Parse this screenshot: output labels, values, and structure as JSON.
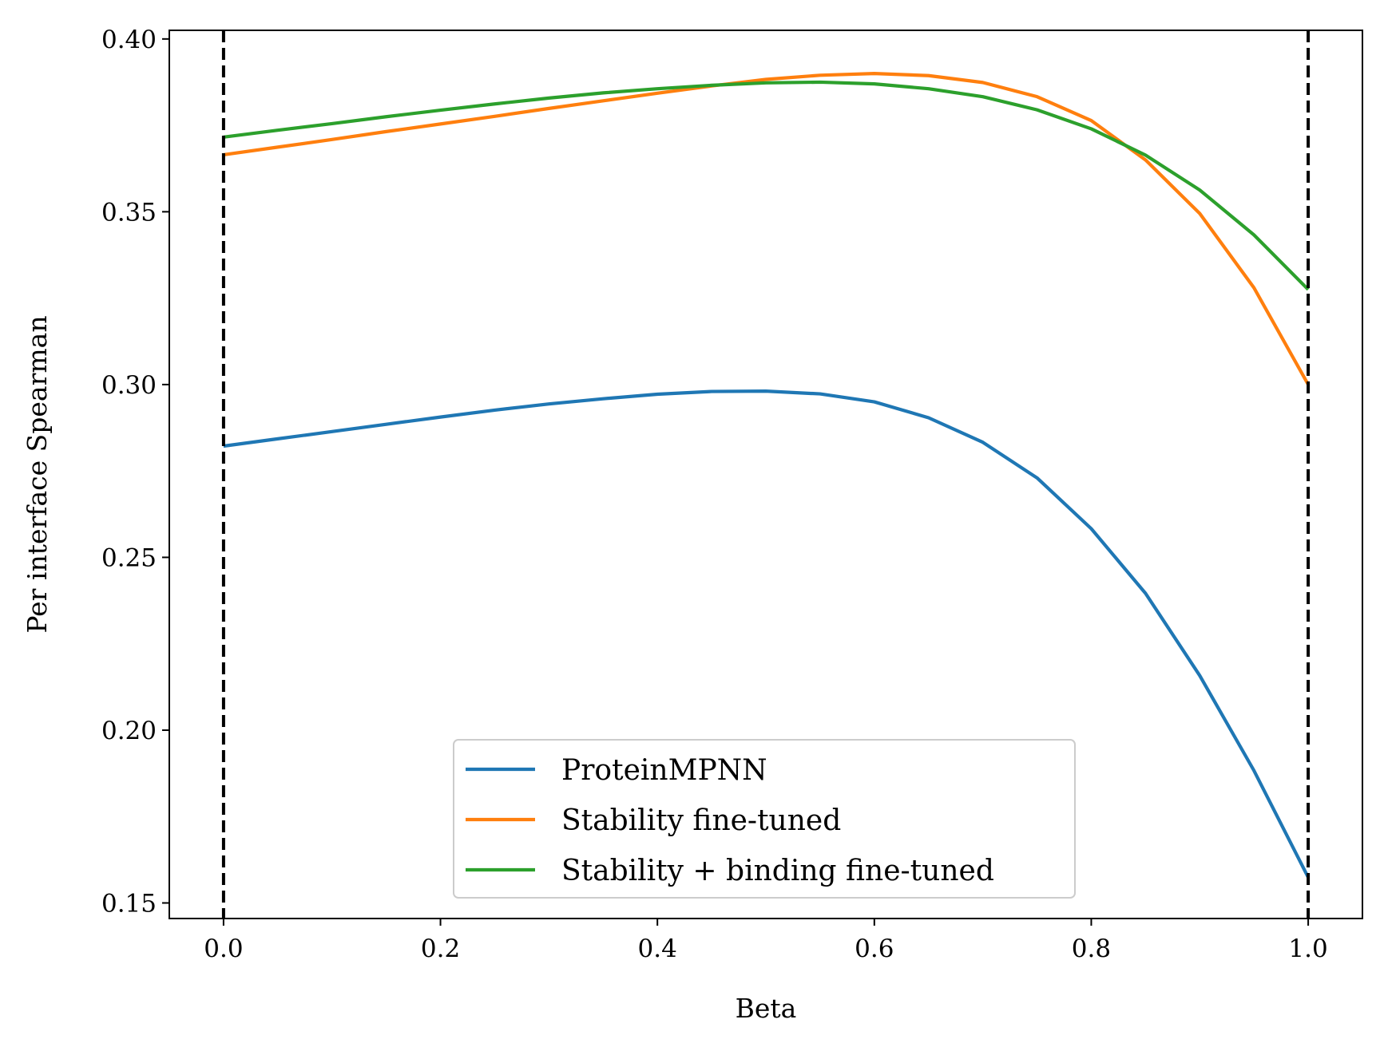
{
  "chart_data": {
    "type": "line",
    "title": "",
    "xlabel": "Beta",
    "ylabel": "Per interface Spearman",
    "xlim": [
      -0.05,
      1.05
    ],
    "ylim": [
      0.1455,
      0.4025
    ],
    "xticks": [
      0.0,
      0.2,
      0.4,
      0.6,
      0.8,
      1.0
    ],
    "xtick_labels": [
      "0.0",
      "0.2",
      "0.4",
      "0.6",
      "0.8",
      "1.0"
    ],
    "yticks": [
      0.15,
      0.2,
      0.25,
      0.3,
      0.35,
      0.4
    ],
    "ytick_labels": [
      "0.15",
      "0.20",
      "0.25",
      "0.30",
      "0.35",
      "0.40"
    ],
    "grid": false,
    "legend_position": "lower-center",
    "reference_lines": [
      {
        "axis": "x",
        "value": 0.0,
        "style": "dashed",
        "color": "#000000"
      },
      {
        "axis": "x",
        "value": 1.0,
        "style": "dashed",
        "color": "#000000"
      }
    ],
    "x": [
      0.0,
      0.05,
      0.1,
      0.15,
      0.2,
      0.25,
      0.3,
      0.35,
      0.4,
      0.45,
      0.5,
      0.55,
      0.6,
      0.65,
      0.7,
      0.75,
      0.8,
      0.85,
      0.9,
      0.95,
      1.0
    ],
    "series": [
      {
        "name": "ProteinMPNN",
        "color": "#1f77b4",
        "values": [
          0.2822,
          0.2843,
          0.2864,
          0.2885,
          0.2906,
          0.2926,
          0.2944,
          0.2959,
          0.2972,
          0.298,
          0.2981,
          0.2973,
          0.295,
          0.2904,
          0.2833,
          0.273,
          0.2583,
          0.2396,
          0.2158,
          0.1883,
          0.1574
        ]
      },
      {
        "name": "Stability fine-tuned",
        "color": "#ff7f0e",
        "values": [
          0.3665,
          0.3687,
          0.3709,
          0.3732,
          0.3754,
          0.3776,
          0.3799,
          0.3821,
          0.3843,
          0.3864,
          0.3883,
          0.3895,
          0.39,
          0.3894,
          0.3874,
          0.3833,
          0.3764,
          0.365,
          0.3495,
          0.328,
          0.3
        ]
      },
      {
        "name": "Stability + binding fine-tuned",
        "color": "#2ca02c",
        "values": [
          0.3716,
          0.3736,
          0.3755,
          0.3775,
          0.3794,
          0.3812,
          0.3829,
          0.3844,
          0.3856,
          0.3866,
          0.3873,
          0.3875,
          0.387,
          0.3856,
          0.3833,
          0.3795,
          0.374,
          0.3664,
          0.3563,
          0.3433,
          0.3275
        ]
      }
    ]
  }
}
